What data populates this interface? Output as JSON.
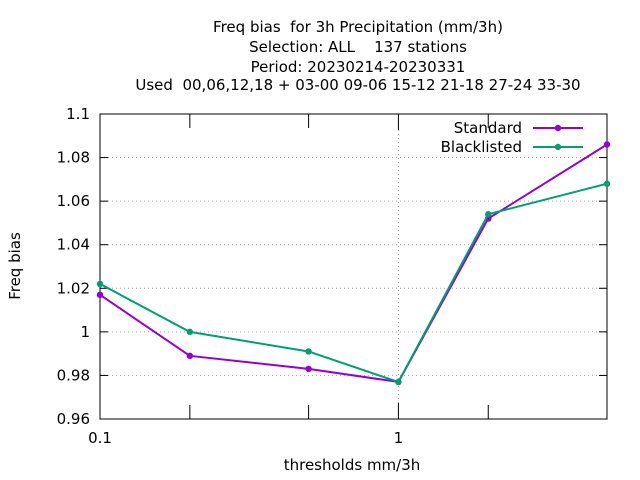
{
  "chart_data": {
    "type": "line",
    "title_lines": [
      "Freq bias  for 3h Precipitation (mm/3h)",
      "Selection: ALL    137 stations",
      "Period: 20230214-20230331",
      "Used  00,06,12,18 + 03-00 09-06 15-12 21-18 27-24 33-30"
    ],
    "xlabel": "thresholds mm/3h",
    "ylabel": "Freq bias",
    "xscale": "log",
    "xlim": [
      0.1,
      5
    ],
    "ylim": [
      0.96,
      1.1
    ],
    "x_ticks": [
      0.1,
      0.2,
      0.5,
      1,
      2,
      5
    ],
    "x_tick_labels": [
      {
        "value": 0.1,
        "label": "0.1"
      },
      {
        "value": 1,
        "label": "1"
      }
    ],
    "y_ticks": [
      {
        "value": 0.96,
        "label": "0.96"
      },
      {
        "value": 0.98,
        "label": "0.98"
      },
      {
        "value": 1.0,
        "label": "1"
      },
      {
        "value": 1.02,
        "label": "1.02"
      },
      {
        "value": 1.04,
        "label": "1.04"
      },
      {
        "value": 1.06,
        "label": "1.06"
      },
      {
        "value": 1.08,
        "label": "1.08"
      },
      {
        "value": 1.1,
        "label": "1.1"
      }
    ],
    "grid": {
      "x": [
        1
      ],
      "y": "all"
    },
    "legend_position": "top-right",
    "x": [
      0.1,
      0.2,
      0.5,
      1,
      2,
      5
    ],
    "series": [
      {
        "name": "Standard",
        "color": "#9400d3",
        "values": [
          1.017,
          0.989,
          0.983,
          0.977,
          1.052,
          1.086
        ]
      },
      {
        "name": "Blacklisted",
        "color": "#009e73",
        "values": [
          1.022,
          1.0,
          0.991,
          0.977,
          1.054,
          1.068
        ]
      }
    ]
  }
}
